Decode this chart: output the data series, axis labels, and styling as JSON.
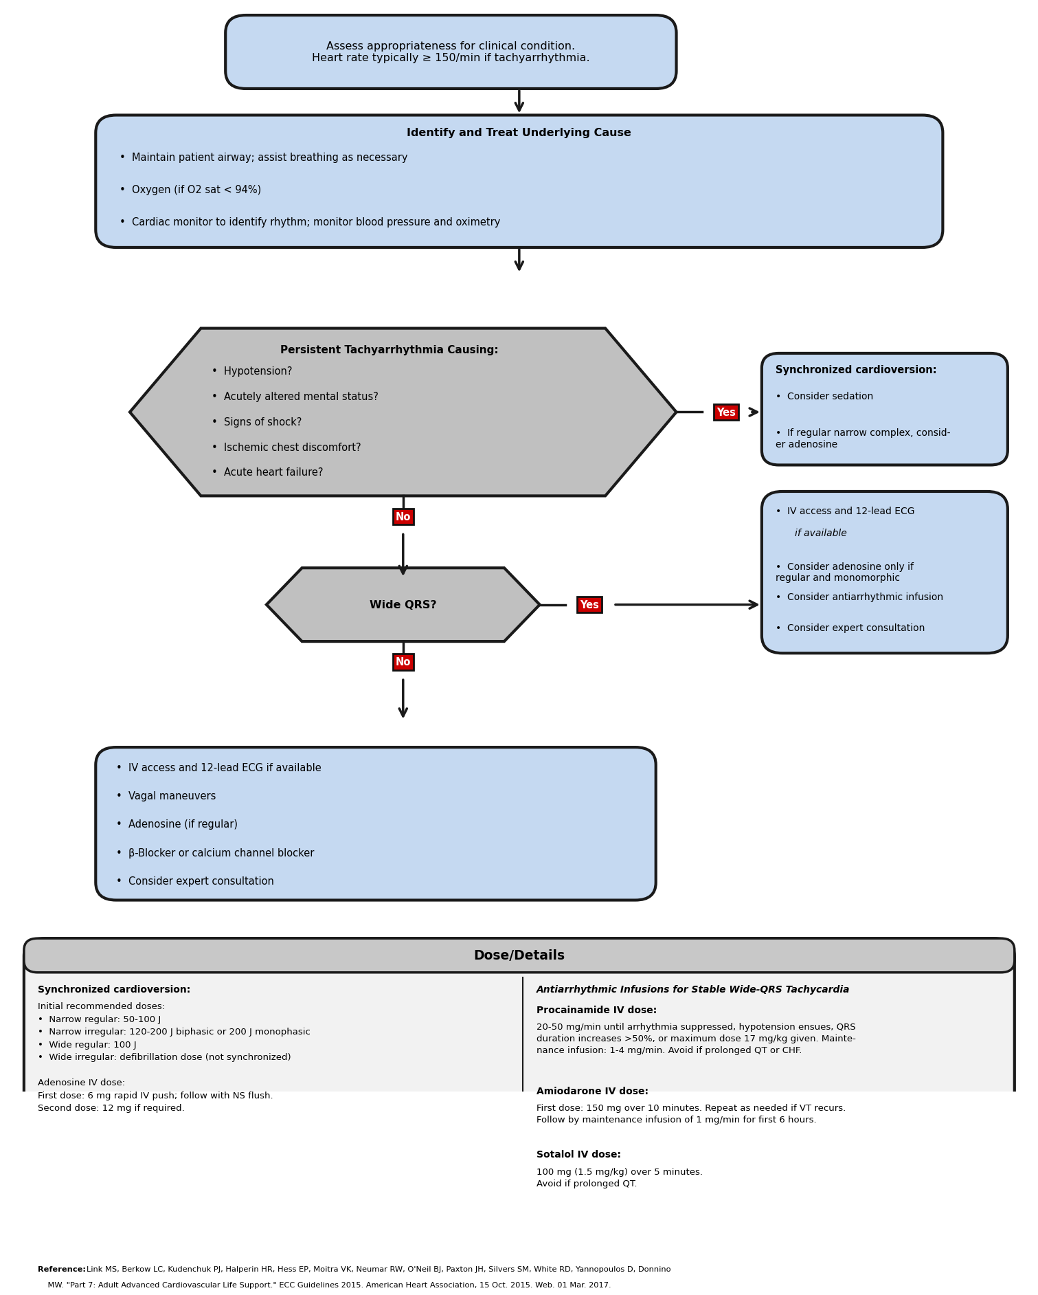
{
  "bg_color": "#ffffff",
  "box_blue_light": "#c5d9f1",
  "box_gray": "#c0c0c0",
  "box_red": "#cc0000",
  "box_outline": "#1a1a1a",
  "text_black": "#000000",
  "text_white": "#ffffff",
  "arrow_color": "#1a1a1a",
  "box1_title": "Assess appropriateness for clinical condition.\nHeart rate typically ≥ 150/min if tachyarrhythmia.",
  "box2_title": "Identify and Treat Underlying Cause",
  "box2_bullets": [
    "Maintain patient airway; assist breathing as necessary",
    "Oxygen (if O2 sat < 94%)",
    "Cardiac monitor to identify rhythm; monitor blood pressure and oximetry"
  ],
  "diamond1_title": "Persistent Tachyarrhythmia Causing:",
  "diamond1_bullets": [
    "Hypotension?",
    "Acutely altered mental status?",
    "Signs of shock?",
    "Ischemic chest discomfort?",
    "Acute heart failure?"
  ],
  "box3_title": "Synchronized cardioversion:",
  "box3_bullets": [
    "Consider sedation",
    "If regular narrow complex, consid-\ner adenosine"
  ],
  "diamond2_title": "Wide QRS?",
  "box4_line1": "IV access and 12-lead ECG",
  "box4_line2": "if available",
  "box4_bullets": [
    "Consider adenosine only if\nregular and monomorphic",
    "Consider antiarrhythmic infusion",
    "Consider expert consultation"
  ],
  "box5_bullets": [
    "IV access and 12-lead ECG if available",
    "Vagal maneuvers",
    "Adenosine (if regular)",
    "β-Blocker or calcium channel blocker",
    "Consider expert consultation"
  ],
  "dose_title": "Dose/Details",
  "dose_left_bold": "Synchronized cardioversion:",
  "dose_left_body": "Initial recommended doses:\n•  Narrow regular: 50-100 J\n•  Narrow irregular: 120-200 J biphasic or 200 J monophasic\n•  Wide regular: 100 J\n•  Wide irregular: defibrillation dose (not synchronized)\n\nAdenosine IV dose:\nFirst dose: 6 mg rapid IV push; follow with NS flush.\nSecond dose: 12 mg if required.",
  "dose_right_title": "Antiarrhythmic Infusions for Stable Wide-QRS Tachycardia",
  "dose_right_paras": [
    {
      "bold": "Procainamide IV dose:",
      "body": "20-50 mg/min until arrhythmia suppressed, hypotension ensues, QRS\nduration increases >50%, or maximum dose 17 mg/kg given. Mainte-\nnance infusion: 1-4 mg/min. Avoid if prolonged QT or CHF."
    },
    {
      "bold": "Amiodarone IV dose:",
      "body": "First dose: 150 mg over 10 minutes. Repeat as needed if VT recurs.\nFollow by maintenance infusion of 1 mg/min for first 6 hours."
    },
    {
      "bold": "Sotalol IV dose:",
      "body": "100 mg (1.5 mg/kg) over 5 minutes.\nAvoid if prolonged QT."
    }
  ],
  "ref_bold": "Reference: ",
  "ref_body": "Link MS, Berkow LC, Kudenchuk PJ, Halperin HR, Hess EP, Moitra VK, Neumar RW, O'Neil BJ, Paxton JH, Silvers SM, White RD, Yannopoulos D, Donnino\n    MW. \"Part 7: Adult Advanced Cardiovascular Life Support.\" ECC Guidelines 2015. American Heart Association, 15 Oct. 2015. Web. 01 Mar. 2017."
}
